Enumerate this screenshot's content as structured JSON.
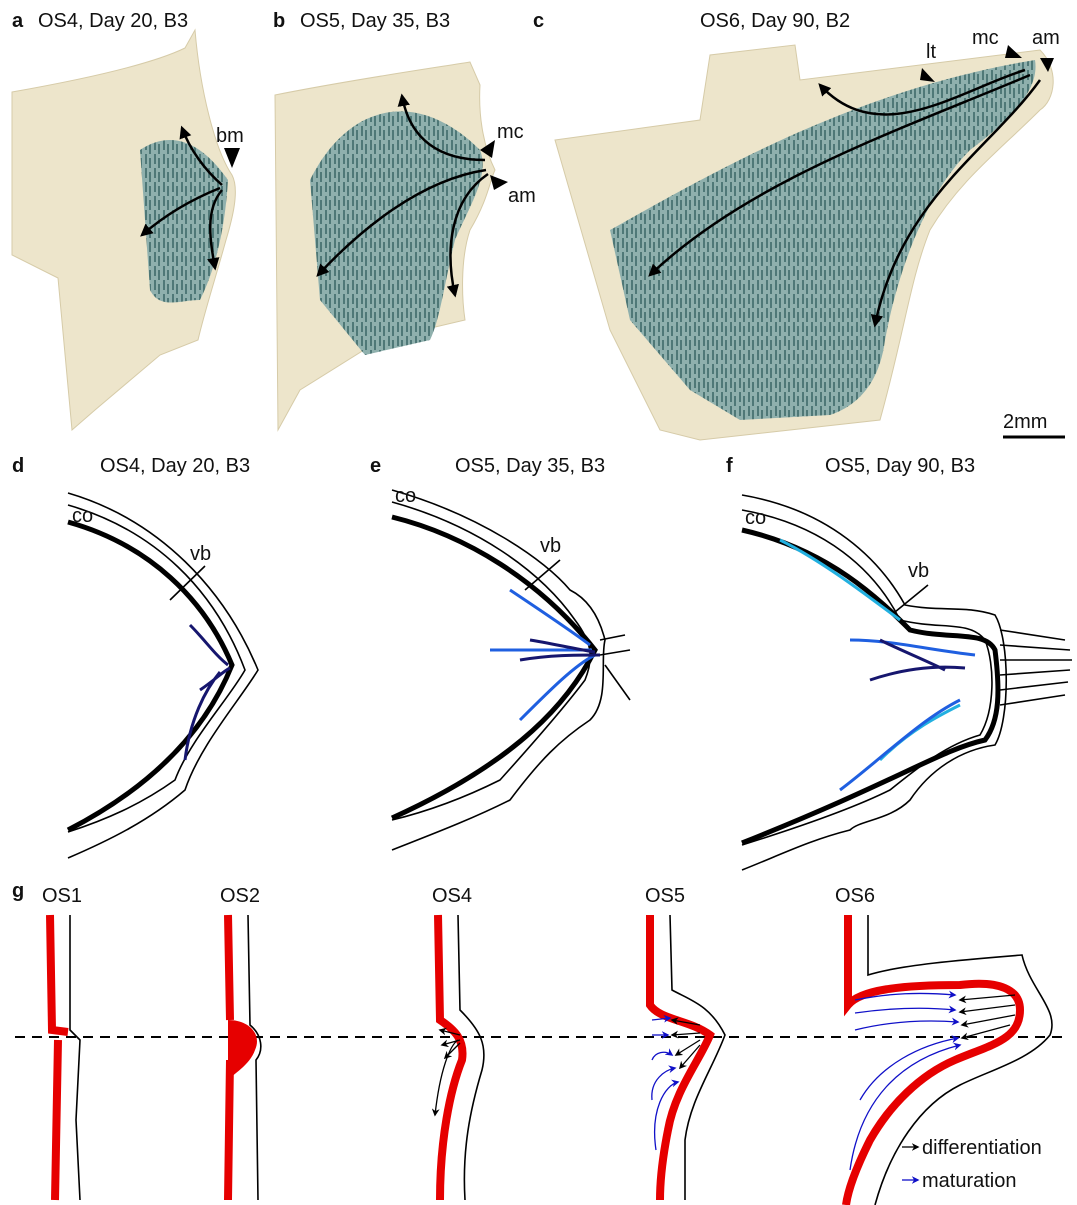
{
  "panels": [
    {
      "letter": "a",
      "title": "OS4, Day 20, B3",
      "labels": [
        "bm"
      ]
    },
    {
      "letter": "b",
      "title": "OS5, Day 35, B3",
      "labels": [
        "mc",
        "am"
      ]
    },
    {
      "letter": "c",
      "title": "OS6, Day 90, B2",
      "labels": [
        "lt",
        "mc",
        "am"
      ]
    },
    {
      "letter": "d",
      "title": "OS4, Day 20, B3",
      "labels": [
        "co",
        "vb"
      ]
    },
    {
      "letter": "e",
      "title": "OS5, Day 35, B3",
      "labels": [
        "co",
        "vb"
      ]
    },
    {
      "letter": "f",
      "title": "OS5, Day 90, B3",
      "labels": [
        "co",
        "vb"
      ]
    },
    {
      "letter": "g",
      "stages": [
        "OS1",
        "OS2",
        "OS4",
        "OS5",
        "OS6"
      ],
      "legend": [
        "differentiation",
        "maturation"
      ]
    }
  ],
  "scale_bar": "2mm"
}
